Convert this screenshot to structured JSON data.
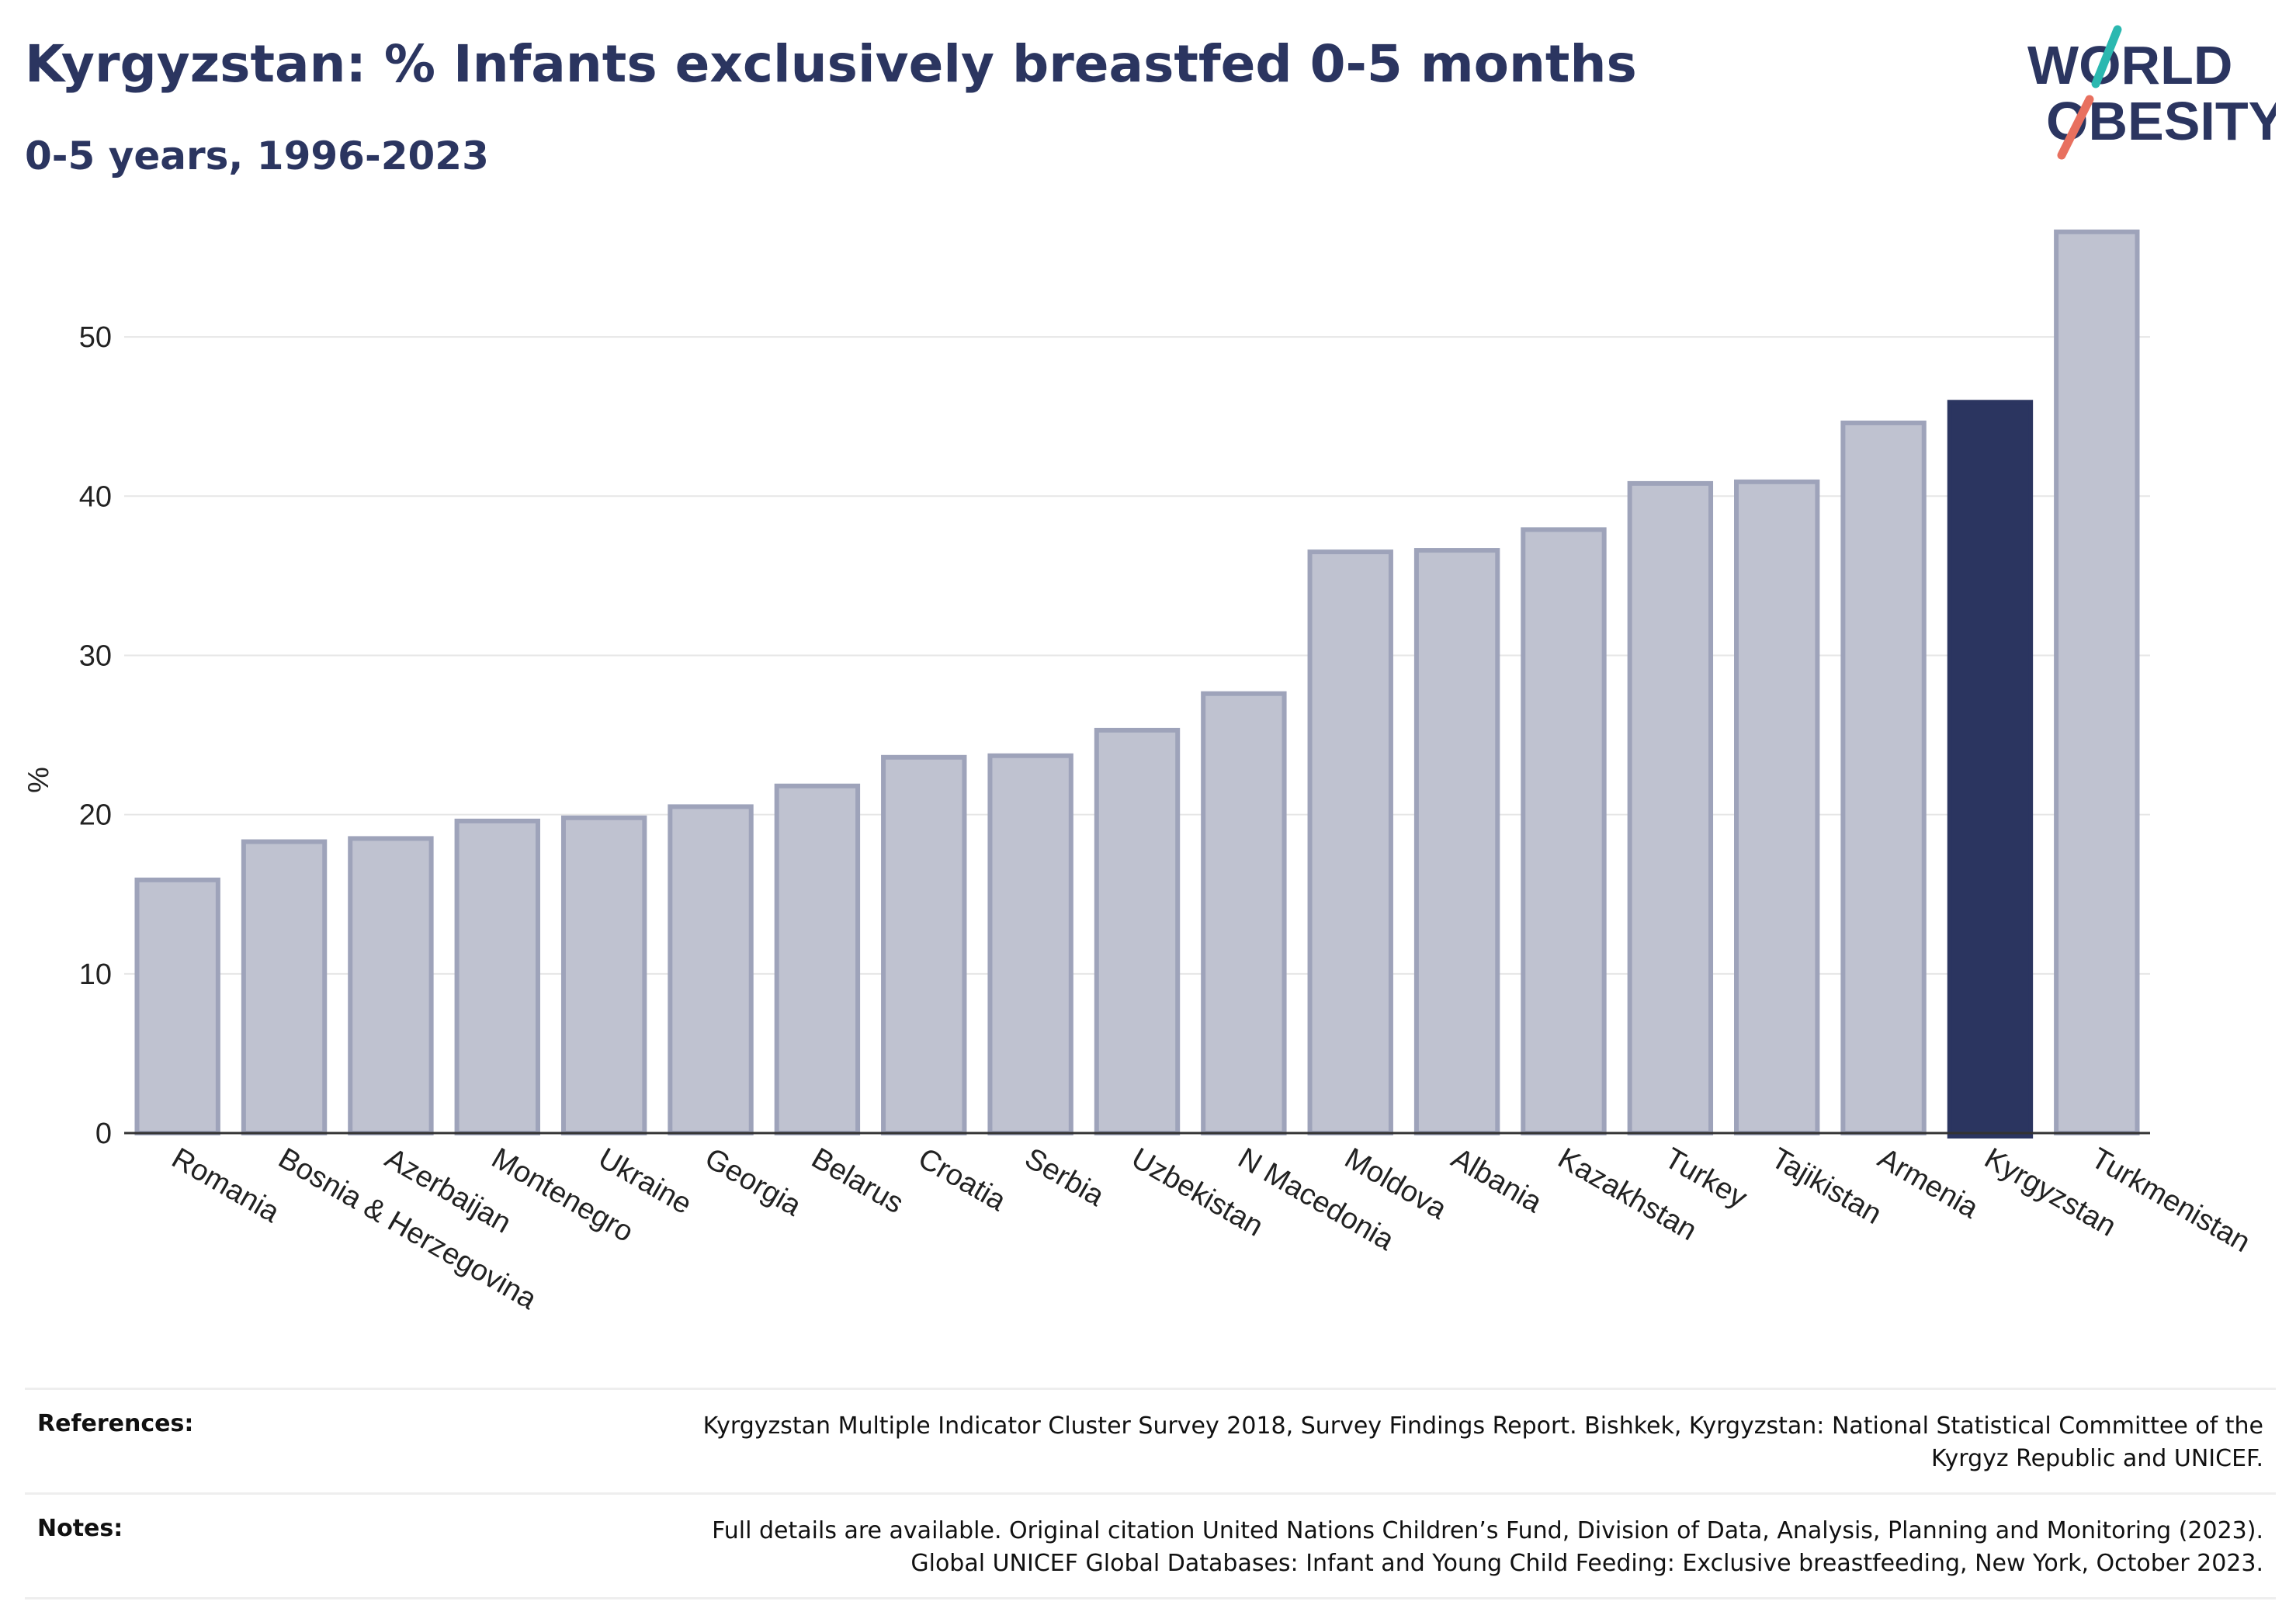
{
  "title": "Kyrgyzstan: % Infants exclusively breastfed 0-5 months",
  "subtitle": "0-5 years, 1996-2023",
  "logo": {
    "line1": "WORLD",
    "line2": "OBESITY"
  },
  "colors": {
    "text": "#2b3560",
    "bar": "#bfc2d0",
    "bar_border": "#9ea3ba",
    "highlight": "#2b3560",
    "logo_teal": "#2bb8b0",
    "logo_coral": "#e8705f"
  },
  "chart_data": {
    "type": "bar",
    "ylabel": "%",
    "xlabel": "",
    "ylim": [
      0,
      58
    ],
    "yticks": [
      0,
      10,
      20,
      30,
      40,
      50
    ],
    "grid": true,
    "highlight": "Kyrgyzstan",
    "categories": [
      "Romania",
      "Bosnia & Herzegovina",
      "Azerbaijan",
      "Montenegro",
      "Ukraine",
      "Georgia",
      "Belarus",
      "Croatia",
      "Serbia",
      "Uzbekistan",
      "N Macedonia",
      "Moldova",
      "Albania",
      "Kazakhstan",
      "Turkey",
      "Tajikistan",
      "Armenia",
      "Kyrgyzstan",
      "Turkmenistan"
    ],
    "values": [
      15.9,
      18.3,
      18.5,
      19.6,
      19.8,
      20.5,
      21.8,
      23.6,
      23.7,
      25.3,
      27.6,
      36.5,
      36.6,
      37.9,
      40.8,
      40.9,
      44.6,
      45.9,
      56.6
    ]
  },
  "references": [
    {
      "label": "References:",
      "lines": [
        "Kyrgyzstan Multiple Indicator Cluster Survey 2018, Survey Findings Report. Bishkek, Kyrgyzstan: National Statistical Committee of the",
        "Kyrgyz Republic and UNICEF."
      ]
    },
    {
      "label": "Notes:",
      "lines": [
        "Full details are available. Original citation United Nations Children’s Fund, Division of Data, Analysis, Planning and Monitoring (2023).",
        "Global UNICEF Global Databases: Infant and Young Child Feeding: Exclusive breastfeeding, New York, October 2023."
      ]
    }
  ]
}
